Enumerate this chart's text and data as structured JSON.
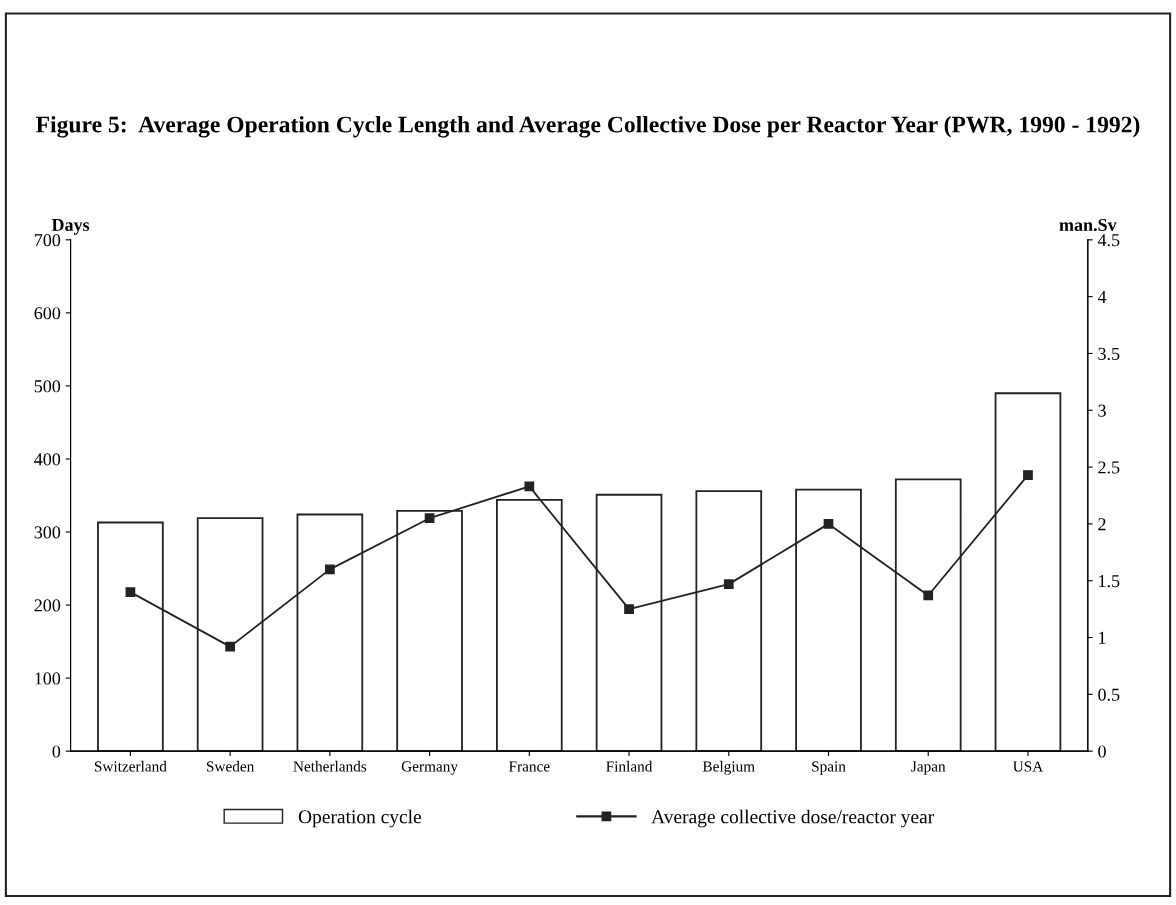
{
  "chart_data": {
    "type": "bar",
    "title": "Figure 5:  Average Operation Cycle Length and Average Collective Dose per Reactor Year (PWR, 1990 - 1992)",
    "ylabel": "Days",
    "y2label": "man.Sv",
    "categories": [
      "Switzerland",
      "Sweden",
      "Netherlands",
      "Germany",
      "France",
      "Finland",
      "Belgium",
      "Spain",
      "Japan",
      "USA"
    ],
    "series": [
      {
        "name": "Operation cycle",
        "color": "#ffffff",
        "values": [
          313,
          319,
          324,
          329,
          344,
          351,
          356,
          358,
          372,
          490
        ]
      },
      {
        "name": "Average collective dose/reactor year",
        "type": "line",
        "axis": "y2",
        "color": "#222222",
        "marker": "square",
        "values": [
          1.4,
          0.92,
          1.6,
          2.05,
          2.33,
          1.25,
          1.47,
          2.0,
          1.37,
          2.43
        ]
      }
    ],
    "ylim": [
      0,
      700
    ],
    "yticks": [
      0,
      100,
      200,
      300,
      400,
      500,
      600,
      700
    ],
    "y2lim": [
      0,
      4.5
    ],
    "y2ticks": [
      0,
      0.5,
      1,
      1.5,
      2,
      2.5,
      3,
      3.5,
      4,
      4.5
    ],
    "grid": false,
    "legend": "bottom"
  }
}
